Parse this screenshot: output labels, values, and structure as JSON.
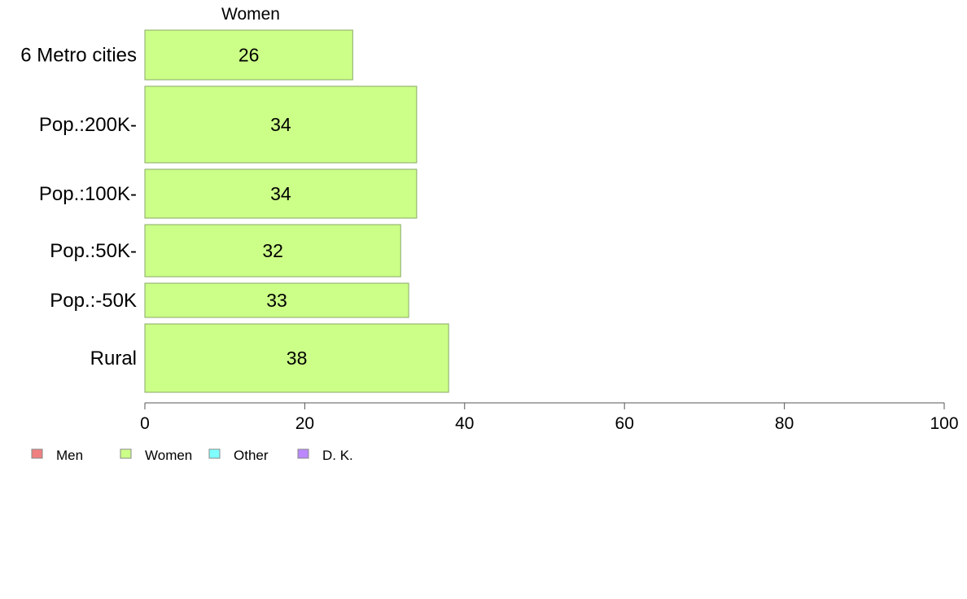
{
  "chart_data": {
    "type": "bar",
    "orientation": "horizontal",
    "title": "Women",
    "categories": [
      "6 Metro cities",
      "Pop.:200K-",
      "Pop.:100K-",
      "Pop.:50K-",
      "Pop.:-50K",
      "Rural"
    ],
    "series": [
      {
        "name": "Women",
        "values": [
          26,
          34,
          34,
          32,
          33,
          38
        ],
        "color": "#ccff88"
      }
    ],
    "xlim": [
      0,
      100
    ],
    "xticks": [
      0,
      20,
      40,
      60,
      80,
      100
    ],
    "grid": false,
    "legend": {
      "placement": "bottom-left",
      "items": [
        {
          "label": "Men",
          "color": "#f08080"
        },
        {
          "label": "Women",
          "color": "#ccff88"
        },
        {
          "label": "Other",
          "color": "#80ffff"
        },
        {
          "label": "D. K.",
          "color": "#bb88ff"
        }
      ]
    }
  }
}
